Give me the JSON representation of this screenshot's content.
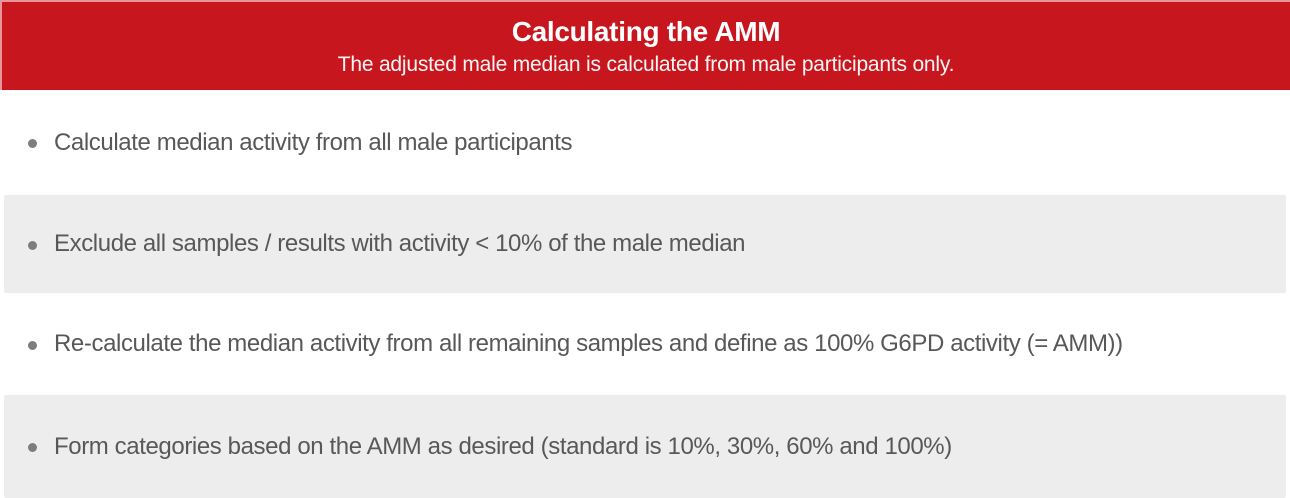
{
  "header": {
    "title": "Calculating the AMM",
    "subtitle": "The adjusted male median is calculated from male participants only."
  },
  "bullets": [
    {
      "text": "Calculate median activity from all male participants"
    },
    {
      "text": "Exclude all samples / results with activity < 10% of the male median"
    },
    {
      "text": "Re-calculate the median activity from all remaining samples and define as 100% G6PD activity (= AMM))"
    },
    {
      "text": "Form categories based on the AMM as desired (standard is 10%, 30%, 60% and 100%)"
    }
  ],
  "colors": {
    "header_bg": "#C8161E",
    "header_text": "#FFFFFF",
    "row_alt_bg": "#EDEDED",
    "text": "#58585A",
    "bullet": "#7D7D7D",
    "page_bg": "#FFFFFF"
  }
}
